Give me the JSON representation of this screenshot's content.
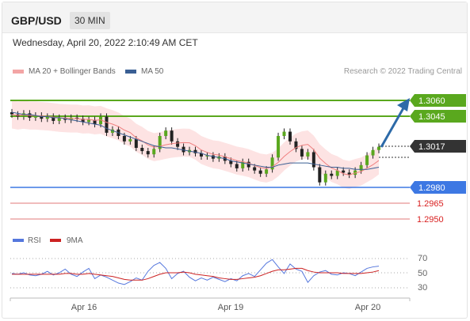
{
  "header": {
    "symbol": "GBP/USD",
    "timeframe": "30 MIN"
  },
  "datetime": "Wednesday, April 20, 2022 2:10:49 AM CET",
  "legend": {
    "items": [
      {
        "label": "MA 20 + Bollinger Bands",
        "color": "#f3a5a5"
      },
      {
        "label": "MA 50",
        "color": "#3a5f94"
      }
    ],
    "credit": "Research © 2022 Trading Central"
  },
  "levels": [
    {
      "value": "1.3060",
      "kind": "target",
      "color": "#5aa81e"
    },
    {
      "value": "1.3045",
      "kind": "resistance",
      "color": "#5aa81e"
    },
    {
      "value": "1.3017",
      "kind": "current",
      "color": "#333333"
    },
    {
      "value": "1.2980",
      "kind": "pivot",
      "color": "#3d78e3"
    },
    {
      "value": "1.2965",
      "kind": "support",
      "color": "#d81e1e"
    },
    {
      "value": "1.2950",
      "kind": "support",
      "color": "#d81e1e"
    }
  ],
  "rsi": {
    "legend": [
      {
        "label": "RSI",
        "color": "#5577dd"
      },
      {
        "label": "9MA",
        "color": "#cc2222"
      }
    ],
    "ticks": [
      "70",
      "50",
      "30"
    ]
  },
  "x_labels": [
    "Apr 16",
    "Apr 19",
    "Apr 20"
  ],
  "chart_data": {
    "type": "line",
    "title": "GBP/USD 30 MIN",
    "price_range": [
      1.295,
      1.306
    ],
    "close": [
      1.3047,
      1.3045,
      1.3048,
      1.3044,
      1.3046,
      1.3043,
      1.3045,
      1.3041,
      1.3044,
      1.3042,
      1.3044,
      1.3043,
      1.304,
      1.3042,
      1.3038,
      1.3045,
      1.303,
      1.3033,
      1.3027,
      1.3022,
      1.3024,
      1.3016,
      1.3013,
      1.301,
      1.3015,
      1.3027,
      1.3032,
      1.3022,
      1.3017,
      1.3012,
      1.3014,
      1.3011,
      1.3008,
      1.3009,
      1.3006,
      1.3008,
      1.3004,
      1.3001,
      1.2997,
      1.3003,
      1.2998,
      1.2995,
      1.2992,
      1.2996,
      1.3007,
      1.3027,
      1.3031,
      1.3022,
      1.3015,
      1.3008,
      1.3012,
      1.2998,
      1.2984,
      1.2992,
      1.299,
      1.2995,
      1.2993,
      1.2991,
      1.2995,
      1.3,
      1.3009,
      1.3014,
      1.3017
    ],
    "ma50": [
      1.3049,
      1.3048,
      1.3047,
      1.3047,
      1.3046,
      1.3045,
      1.3045,
      1.3044,
      1.3044,
      1.3043,
      1.3042,
      1.3041,
      1.304,
      1.3039,
      1.3038,
      1.3037,
      1.3034,
      1.3032,
      1.303,
      1.3028,
      1.3026,
      1.3024,
      1.3022,
      1.302,
      1.3018,
      1.3017,
      1.3016,
      1.3016,
      1.3015,
      1.3014,
      1.3013,
      1.3012,
      1.3011,
      1.3009,
      1.3008,
      1.3007,
      1.3006,
      1.3004,
      1.3003,
      1.3002,
      1.3001,
      1.3,
      1.2999,
      1.2998,
      1.2998,
      1.3,
      1.3001,
      1.3002,
      1.3002,
      1.3002,
      1.3002,
      1.3001,
      1.3,
      1.2999,
      1.2998,
      1.2998,
      1.2997,
      1.2997,
      1.2996,
      1.2996,
      1.2996,
      1.2997,
      1.2998
    ],
    "rsi": [
      49,
      48,
      50,
      47,
      46,
      48,
      52,
      47,
      50,
      55,
      48,
      45,
      51,
      56,
      42,
      47,
      44,
      40,
      36,
      34,
      38,
      43,
      40,
      52,
      60,
      64,
      56,
      42,
      49,
      52,
      44,
      39,
      43,
      40,
      44,
      41,
      38,
      42,
      39,
      46,
      49,
      45,
      54,
      63,
      68,
      58,
      49,
      62,
      55,
      52,
      37,
      46,
      51,
      53,
      48,
      47,
      50,
      49,
      46,
      51,
      56,
      58,
      59
    ],
    "rsi_ma": [
      48,
      48,
      48,
      48,
      48,
      48,
      48,
      48,
      48,
      49,
      49,
      48,
      48,
      49,
      48,
      47,
      46,
      45,
      43,
      41,
      40,
      40,
      40,
      42,
      45,
      48,
      50,
      50,
      50,
      51,
      50,
      48,
      47,
      46,
      45,
      43,
      42,
      41,
      41,
      42,
      43,
      44,
      46,
      49,
      52,
      54,
      54,
      55,
      56,
      56,
      53,
      51,
      50,
      50,
      50,
      50,
      49,
      49,
      49,
      49,
      50,
      51,
      53
    ]
  }
}
